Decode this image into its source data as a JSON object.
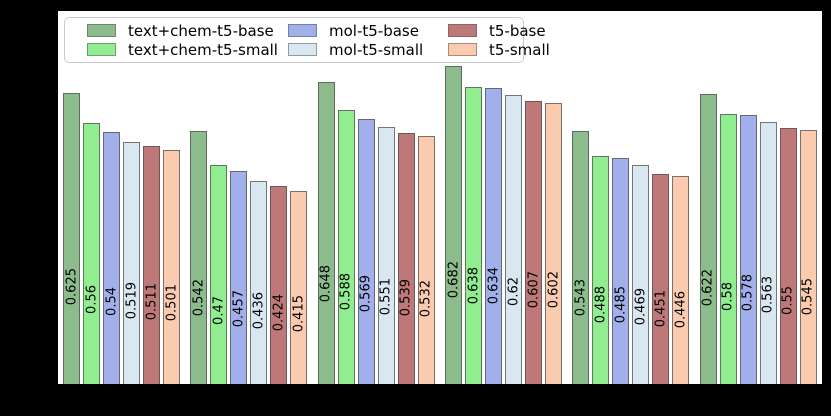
{
  "figure": {
    "outer_background": "#000000",
    "plot_background": "#ffffff",
    "spine_color": "#000000"
  },
  "legend": {
    "position": "upper-left",
    "columns": 3,
    "border_color": "#cccccc",
    "background": "#ffffff"
  },
  "chart_data": {
    "type": "bar",
    "n_groups": 6,
    "ylim": [
      0,
      0.8
    ],
    "grid": false,
    "axis_tick_labels_visible": false,
    "bar_label_rotation": 90,
    "bar_label_color": "#000000",
    "series": [
      {
        "name": "text+chem-t5-base",
        "color": "#8CBB8C",
        "values": [
          0.625,
          0.542,
          0.648,
          0.682,
          0.543,
          0.622
        ],
        "labels": [
          "0.625",
          "0.542",
          "0.648",
          "0.682",
          "0.543",
          "0.622"
        ]
      },
      {
        "name": "text+chem-t5-small",
        "color": "#90EE90",
        "values": [
          0.56,
          0.47,
          0.588,
          0.638,
          0.488,
          0.58
        ],
        "labels": [
          "0.56",
          "0.47",
          "0.588",
          "0.638",
          "0.488",
          "0.58"
        ]
      },
      {
        "name": "mol-t5-base",
        "color": "#A1B0EB",
        "values": [
          0.54,
          0.457,
          0.569,
          0.634,
          0.485,
          0.578
        ],
        "labels": [
          "0.54",
          "0.457",
          "0.569",
          "0.634",
          "0.485",
          "0.578"
        ]
      },
      {
        "name": "mol-t5-small",
        "color": "#D9E8F0",
        "values": [
          0.519,
          0.436,
          0.551,
          0.62,
          0.469,
          0.563
        ],
        "labels": [
          "0.519",
          "0.436",
          "0.551",
          "0.62",
          "0.469",
          "0.563"
        ]
      },
      {
        "name": "t5-base",
        "color": "#BE7878",
        "values": [
          0.511,
          0.424,
          0.539,
          0.607,
          0.451,
          0.55
        ],
        "labels": [
          "0.511",
          "0.424",
          "0.539",
          "0.607",
          "0.451",
          "0.55"
        ]
      },
      {
        "name": "t5-small",
        "color": "#FBCBB0",
        "values": [
          0.501,
          0.415,
          0.532,
          0.602,
          0.446,
          0.545
        ],
        "labels": [
          "0.501",
          "0.415",
          "0.532",
          "0.602",
          "0.446",
          "0.545"
        ]
      }
    ]
  }
}
